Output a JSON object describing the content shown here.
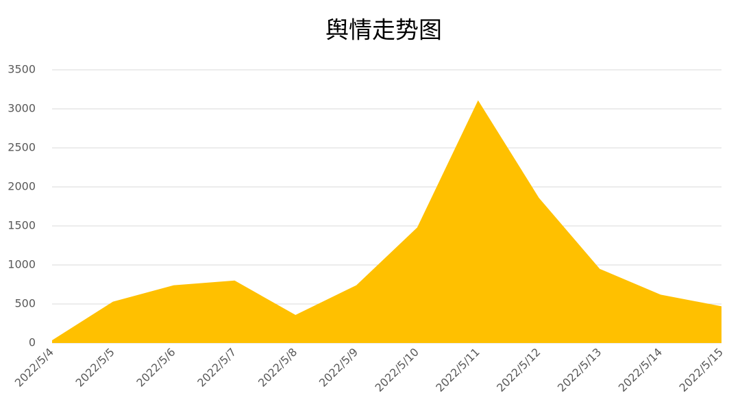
{
  "chart_data": {
    "type": "area",
    "title": "舆情走势图",
    "categories": [
      "2022/5/4",
      "2022/5/5",
      "2022/5/6",
      "2022/5/7",
      "2022/5/8",
      "2022/5/9",
      "2022/5/10",
      "2022/5/11",
      "2022/5/12",
      "2022/5/13",
      "2022/5/14",
      "2022/5/15"
    ],
    "values": [
      35,
      530,
      740,
      800,
      360,
      740,
      1480,
      3110,
      1860,
      950,
      620,
      470
    ],
    "color": "#ffc000",
    "ylim": [
      0,
      3500
    ],
    "yticks": [
      0,
      500,
      1000,
      1500,
      2000,
      2500,
      3000,
      3500
    ],
    "grid": true
  }
}
